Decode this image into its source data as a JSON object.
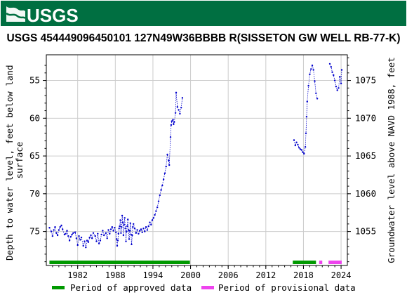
{
  "header": {
    "logo_text": "USGS",
    "banner_color": "#006f41"
  },
  "chart_data": {
    "type": "scatter",
    "title": "USGS 454449096450101 127N49W36BBBB R(SISSETON GW WELL RB-77-K)",
    "ylabel": "Depth to water level, feet below land surface",
    "y2label": "Groundwater level above NAVD 1988, feet",
    "xlim": [
      1977.0,
      2025.0
    ],
    "ylim": [
      79.5,
      51.6
    ],
    "y2lim": [
      1050.5,
      1078.4
    ],
    "y_inverted": true,
    "x_ticks": [
      "1982",
      "1988",
      "1994",
      "2000",
      "2006",
      "2012",
      "2018",
      "2024"
    ],
    "y_ticks": [
      "55",
      "60",
      "65",
      "70",
      "75"
    ],
    "y2_ticks": [
      "1055",
      "1060",
      "1065",
      "1070",
      "1075"
    ],
    "grid": true,
    "legend_placement": "bottom",
    "series": [
      {
        "name": "Depth to water level",
        "color": "#0000cc",
        "segments": [
          [
            [
              1977.5,
              74.5
            ],
            [
              1977.8,
              75.0
            ],
            [
              1978.0,
              75.6
            ],
            [
              1978.2,
              74.8
            ],
            [
              1978.4,
              74.4
            ],
            [
              1978.6,
              75.2
            ],
            [
              1978.8,
              75.5
            ],
            [
              1979.0,
              74.8
            ],
            [
              1979.2,
              74.4
            ],
            [
              1979.4,
              74.2
            ],
            [
              1979.6,
              74.7
            ],
            [
              1979.9,
              75.4
            ],
            [
              1980.1,
              75.3
            ],
            [
              1980.3,
              74.9
            ],
            [
              1980.5,
              75.6
            ],
            [
              1980.7,
              76.2
            ],
            [
              1980.9,
              75.7
            ],
            [
              1981.1,
              75.4
            ],
            [
              1981.3,
              75.2
            ],
            [
              1981.6,
              75.1
            ],
            [
              1981.8,
              75.9
            ],
            [
              1982.0,
              76.8
            ],
            [
              1982.2,
              75.6
            ],
            [
              1982.4,
              76.1
            ],
            [
              1982.6,
              75.8
            ],
            [
              1982.9,
              76.9
            ],
            [
              1983.1,
              76.3
            ],
            [
              1983.3,
              77.1
            ],
            [
              1983.5,
              76.2
            ],
            [
              1983.7,
              76.4
            ],
            [
              1983.9,
              75.8
            ],
            [
              1984.1,
              75.5
            ],
            [
              1984.3,
              75.9
            ],
            [
              1984.5,
              75.2
            ],
            [
              1984.8,
              75.6
            ],
            [
              1985.0,
              76.3
            ],
            [
              1985.2,
              75.3
            ],
            [
              1985.4,
              76.6
            ],
            [
              1985.6,
              76.2
            ],
            [
              1985.8,
              75.4
            ],
            [
              1986.0,
              74.9
            ],
            [
              1986.2,
              75.5
            ],
            [
              1986.5,
              75.2
            ],
            [
              1986.7,
              75.9
            ],
            [
              1986.9,
              74.8
            ],
            [
              1987.1,
              75.3
            ],
            [
              1987.3,
              74.7
            ],
            [
              1987.5,
              74.4
            ],
            [
              1987.7,
              74.9
            ],
            [
              1987.9,
              74.5
            ],
            [
              1988.1,
              75.1
            ],
            [
              1988.2,
              76.0
            ],
            [
              1988.3,
              76.9
            ],
            [
              1988.4,
              76.2
            ],
            [
              1988.5,
              75.3
            ],
            [
              1988.6,
              74.6
            ],
            [
              1988.7,
              74.3
            ],
            [
              1988.8,
              73.5
            ],
            [
              1988.9,
              75.2
            ],
            [
              1989.0,
              74.4
            ],
            [
              1989.1,
              72.9
            ],
            [
              1989.2,
              73.8
            ],
            [
              1989.3,
              75.5
            ],
            [
              1989.4,
              74.1
            ],
            [
              1989.5,
              73.2
            ],
            [
              1989.6,
              74.6
            ],
            [
              1989.7,
              76.3
            ],
            [
              1989.8,
              75.0
            ],
            [
              1989.9,
              74.3
            ],
            [
              1990.0,
              73.4
            ],
            [
              1990.1,
              74.8
            ],
            [
              1990.2,
              76.0
            ],
            [
              1990.3,
              74.9
            ],
            [
              1990.4,
              73.9
            ],
            [
              1990.5,
              75.4
            ],
            [
              1990.6,
              76.7
            ],
            [
              1990.7,
              75.5
            ],
            [
              1990.8,
              74.4
            ],
            [
              1990.9,
              74.0
            ],
            [
              1991.1,
              74.6
            ],
            [
              1991.3,
              75.2
            ],
            [
              1991.5,
              74.8
            ],
            [
              1991.7,
              75.3
            ],
            [
              1991.9,
              74.9
            ],
            [
              1992.1,
              74.7
            ],
            [
              1992.3,
              75.1
            ],
            [
              1992.5,
              74.6
            ],
            [
              1992.7,
              75.0
            ],
            [
              1992.9,
              74.4
            ],
            [
              1993.1,
              74.8
            ],
            [
              1993.3,
              74.3
            ],
            [
              1993.5,
              73.8
            ],
            [
              1993.7,
              74.1
            ],
            [
              1993.9,
              73.5
            ],
            [
              1994.1,
              73.2
            ],
            [
              1994.3,
              72.8
            ],
            [
              1994.5,
              72.3
            ],
            [
              1994.7,
              71.8
            ],
            [
              1994.9,
              71.0
            ],
            [
              1995.1,
              70.2
            ],
            [
              1995.3,
              69.5
            ],
            [
              1995.5,
              68.9
            ],
            [
              1995.7,
              68.1
            ],
            [
              1995.9,
              67.3
            ],
            [
              1996.1,
              66.4
            ],
            [
              1996.3,
              64.8
            ],
            [
              1996.5,
              65.6
            ],
            [
              1996.6,
              66.2
            ],
            [
              1996.8,
              62.5
            ],
            [
              1996.9,
              60.9
            ],
            [
              1997.0,
              60.4
            ],
            [
              1997.2,
              60.2
            ],
            [
              1997.3,
              60.8
            ],
            [
              1997.4,
              60.5
            ],
            [
              1997.6,
              59.3
            ],
            [
              1997.7,
              56.6
            ],
            [
              1997.9,
              58.5
            ],
            [
              1998.1,
              58.9
            ],
            [
              1998.3,
              59.4
            ],
            [
              1998.5,
              58.6
            ],
            [
              1998.7,
              57.3
            ]
          ],
          [
            [
              2016.5,
              62.9
            ],
            [
              2016.7,
              63.6
            ],
            [
              2016.9,
              63.2
            ],
            [
              2017.1,
              63.5
            ],
            [
              2017.3,
              63.9
            ],
            [
              2017.5,
              64.1
            ],
            [
              2017.7,
              64.2
            ],
            [
              2017.9,
              64.5
            ],
            [
              2018.1,
              64.7
            ],
            [
              2018.3,
              63.8
            ],
            [
              2018.4,
              62.0
            ],
            [
              2018.5,
              59.8
            ],
            [
              2018.6,
              57.8
            ],
            [
              2018.8,
              55.7
            ],
            [
              2019.0,
              54.2
            ],
            [
              2019.2,
              53.5
            ],
            [
              2019.4,
              53.0
            ],
            [
              2019.6,
              53.6
            ],
            [
              2019.8,
              55.1
            ],
            [
              2020.0,
              56.7
            ],
            [
              2020.2,
              57.4
            ]
          ],
          [
            [
              2022.2,
              52.8
            ],
            [
              2022.4,
              53.2
            ],
            [
              2022.6,
              53.9
            ],
            [
              2022.8,
              54.3
            ],
            [
              2023.0,
              55.0
            ],
            [
              2023.2,
              55.8
            ],
            [
              2023.4,
              56.3
            ],
            [
              2023.6,
              56.0
            ],
            [
              2023.8,
              54.5
            ],
            [
              2024.0,
              55.4
            ],
            [
              2024.1,
              53.6
            ]
          ]
        ]
      }
    ],
    "approval_periods": [
      {
        "status": "approved",
        "start": 1977.5,
        "end": 1999.9,
        "color": "#009900"
      },
      {
        "status": "approved",
        "start": 2016.3,
        "end": 2020.0,
        "color": "#009900"
      },
      {
        "status": "provisional",
        "start": 2020.5,
        "end": 2021.0,
        "color": "#ee44ee"
      },
      {
        "status": "provisional",
        "start": 2022.0,
        "end": 2024.1,
        "color": "#ee44ee"
      }
    ],
    "legend": [
      {
        "label": "Period of approved data",
        "color": "#009900"
      },
      {
        "label": "Period of provisional data",
        "color": "#ee44ee"
      }
    ]
  }
}
